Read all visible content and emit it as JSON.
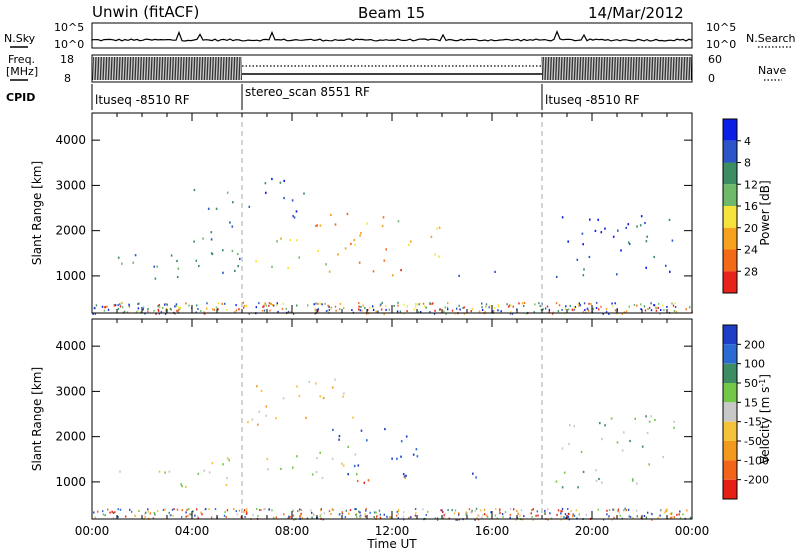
{
  "header": {
    "radar": "Unwin (fitACF)",
    "beam": "Beam 15",
    "date": "14/Mar/2012"
  },
  "strips": {
    "nsky": {
      "label": "N.Sky",
      "tick_top": "10^5",
      "tick_bottom": "10^0"
    },
    "nsearch": {
      "label": "N.Search",
      "tick_top": "10^5",
      "tick_bottom": "10^0"
    },
    "freq": {
      "label_line1": "Freq.",
      "label_line2": "[MHz]",
      "tick_top": "18",
      "tick_bottom": "8"
    },
    "nave": {
      "label": "Nave",
      "tick_top": "60",
      "tick_bottom": "0"
    },
    "cpid": {
      "label": "CPID"
    }
  },
  "cpid_segments": [
    {
      "label": "ltuseq -8510 RF",
      "start_h": 0,
      "end_h": 6
    },
    {
      "label": "stereo_scan 8551 RF",
      "start_h": 6,
      "end_h": 18
    },
    {
      "label": "ltuseq -8510 RF",
      "start_h": 18,
      "end_h": 24
    }
  ],
  "chart_data": [
    {
      "type": "heatmap",
      "title": "",
      "xlabel": "",
      "ylabel": "Slant Range [km]",
      "xlim": [
        0,
        24
      ],
      "ylim": [
        180,
        4600
      ],
      "yticks": [
        1000,
        2000,
        3000,
        4000
      ],
      "colorbar": {
        "label": "Power [dB]",
        "ticks": [
          "4",
          "8",
          "12",
          "16",
          "20",
          "24",
          "28"
        ],
        "colors": [
          "#0a1ee6",
          "#2b55c8",
          "#3c8c64",
          "#6fba6a",
          "#f6e43c",
          "#f7a21e",
          "#f26a18",
          "#e8241a"
        ]
      },
      "echo_regions": [
        {
          "t0": 1.0,
          "t1": 6.0,
          "r0": 900,
          "r1": 1600,
          "level": 2
        },
        {
          "t0": 4.0,
          "t1": 6.0,
          "r0": 1100,
          "r1": 3000,
          "level": 2
        },
        {
          "t0": 6.2,
          "t1": 8.5,
          "r0": 2200,
          "r1": 3300,
          "level": 1
        },
        {
          "t0": 6.5,
          "t1": 10.5,
          "r0": 1100,
          "r1": 1900,
          "level": 4
        },
        {
          "t0": 8.5,
          "t1": 12.0,
          "r0": 1600,
          "r1": 2400,
          "level": 5
        },
        {
          "t0": 10.5,
          "t1": 12.5,
          "r0": 1000,
          "r1": 1600,
          "level": 6
        },
        {
          "t0": 12.0,
          "t1": 14.0,
          "r0": 1400,
          "r1": 2300,
          "level": 4
        },
        {
          "t0": 14.5,
          "t1": 16.3,
          "r0": 1000,
          "r1": 1300,
          "level": 2
        },
        {
          "t0": 18.5,
          "t1": 23.5,
          "r0": 1000,
          "r1": 2500,
          "level": 1
        }
      ]
    },
    {
      "type": "heatmap",
      "title": "",
      "xlabel": "Time UT",
      "ylabel": "Slant Range [km]",
      "xlim": [
        0,
        24
      ],
      "ylim": [
        180,
        4600
      ],
      "yticks": [
        1000,
        2000,
        3000,
        4000
      ],
      "xticks": [
        "00:00",
        "04:00",
        "08:00",
        "12:00",
        "16:00",
        "20:00",
        "00:00"
      ],
      "colorbar": {
        "label": "Velocity [m s^-1]",
        "ticks": [
          "200",
          "100",
          "50",
          "15",
          "-15",
          "-50",
          "-100",
          "-200"
        ],
        "colors": [
          "#1f3ec8",
          "#2a6ad2",
          "#3c8c64",
          "#74c848",
          "#c8c8c8",
          "#f5c23c",
          "#f29a1e",
          "#f2641a",
          "#e61e14"
        ]
      },
      "echo_regions": [
        {
          "t0": 1.0,
          "t1": 6.0,
          "r0": 900,
          "r1": 1600,
          "level": 4
        },
        {
          "t0": 6.2,
          "t1": 10.5,
          "r0": 2200,
          "r1": 3300,
          "level": 5
        },
        {
          "t0": 6.5,
          "t1": 11.0,
          "r0": 1100,
          "r1": 1900,
          "level": 4
        },
        {
          "t0": 9.5,
          "t1": 13.5,
          "r0": 1100,
          "r1": 2200,
          "level": 0
        },
        {
          "t0": 10.5,
          "t1": 12.5,
          "r0": 900,
          "r1": 1300,
          "level": 7
        },
        {
          "t0": 14.5,
          "t1": 16.3,
          "r0": 1000,
          "r1": 1300,
          "level": 1
        },
        {
          "t0": 18.5,
          "t1": 23.5,
          "r0": 900,
          "r1": 2500,
          "level": 3
        }
      ]
    }
  ]
}
